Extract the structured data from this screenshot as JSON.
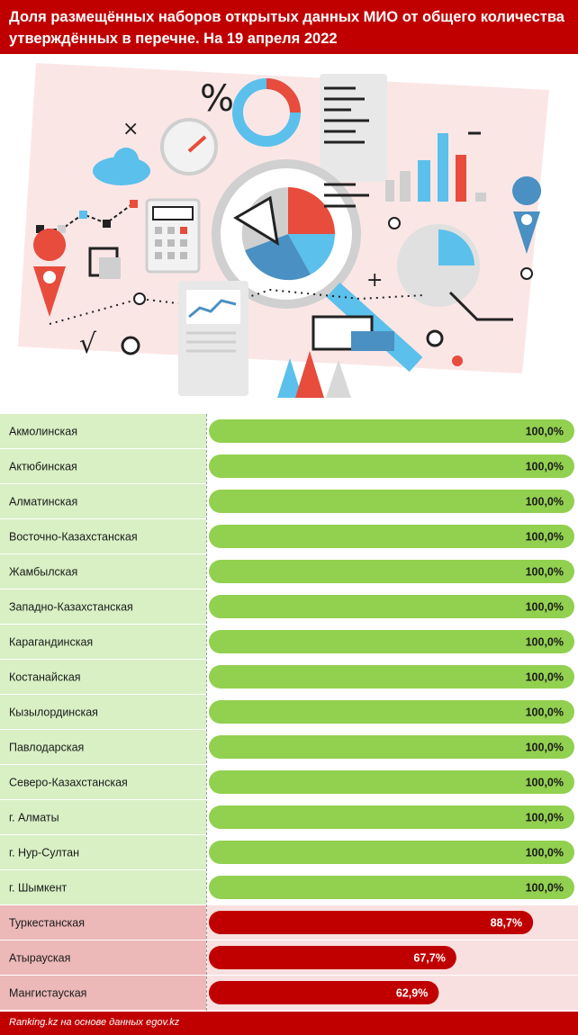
{
  "header": {
    "title": "Доля размещённых наборов открытых данных МИО от общего количества утверждённых в перечне. На 19 апреля 2022"
  },
  "footer": {
    "source": "Ranking.kz на основе данных egov.kz"
  },
  "colors": {
    "header_bg": "#c00000",
    "green_bar": "#92d050",
    "green_row": "#d8f0c4",
    "red_bar": "#c00000",
    "red_row_label": "#ecb8b8",
    "red_row_track": "#f8e0e0"
  },
  "chart_data": {
    "type": "bar",
    "orientation": "horizontal",
    "xlim": [
      0,
      100
    ],
    "categories": [
      "Акмолинская",
      "Актюбинская",
      "Алматинская",
      "Восточно-Казахстанская",
      "Жамбылская",
      "Западно-Казахстанская",
      "Карагандинская",
      "Костанайская",
      "Кызылординская",
      "Павлодарская",
      "Северо-Казахстанская",
      "г. Алматы",
      "г. Нур-Султан",
      "г. Шымкент",
      "Туркестанская",
      "Атырауская",
      "Мангистауская"
    ],
    "values": [
      100,
      100,
      100,
      100,
      100,
      100,
      100,
      100,
      100,
      100,
      100,
      100,
      100,
      100,
      88.7,
      67.7,
      62.9
    ],
    "value_labels": [
      "100,0%",
      "100,0%",
      "100,0%",
      "100,0%",
      "100,0%",
      "100,0%",
      "100,0%",
      "100,0%",
      "100,0%",
      "100,0%",
      "100,0%",
      "100,0%",
      "100,0%",
      "100,0%",
      "88,7%",
      "67,7%",
      "62,9%"
    ]
  }
}
